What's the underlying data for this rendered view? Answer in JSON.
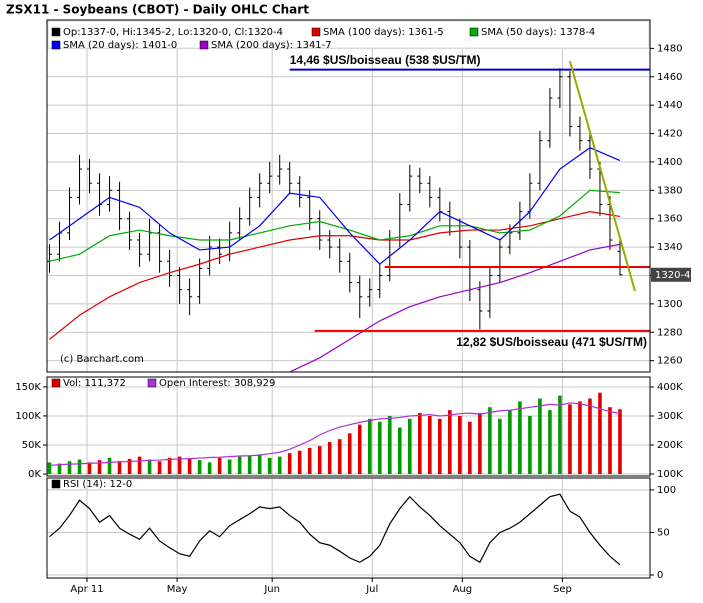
{
  "chart_data": [
    {
      "type": "ohlc",
      "title": "ZSX11 - Soybeans (CBOT) - Daily OHLC Chart",
      "credit": "(c) Barchart.com",
      "last_label": "1320-4",
      "x": [
        0,
        2,
        4,
        6,
        8,
        10,
        12,
        14,
        16,
        18,
        20,
        22,
        24,
        26,
        28,
        30,
        32,
        34,
        36,
        38,
        40,
        42,
        44,
        46,
        48,
        50,
        52,
        54,
        56,
        58,
        60,
        62,
        64,
        66,
        68,
        70,
        72,
        74,
        76,
        78,
        80,
        82,
        84,
        86,
        88,
        90,
        92,
        94,
        96,
        98,
        100,
        102,
        104,
        106,
        108,
        110,
        112,
        114
      ],
      "xlim": [
        -0.5,
        120
      ],
      "ylim": [
        1252,
        1500
      ],
      "yticks": [
        1260,
        1280,
        1300,
        1320,
        1340,
        1360,
        1380,
        1400,
        1420,
        1440,
        1460,
        1480
      ],
      "grid": true,
      "series": [
        {
          "name": "Op:1337-0, Hi:1345-2, Lo:1320-0, Cl:1320-4",
          "color": "#000000",
          "open": [
            1330,
            1335,
            1350,
            1375,
            1395,
            1385,
            1370,
            1380,
            1360,
            1345,
            1335,
            1350,
            1330,
            1320,
            1310,
            1305,
            1325,
            1340,
            1335,
            1350,
            1360,
            1375,
            1385,
            1390,
            1395,
            1385,
            1375,
            1360,
            1345,
            1340,
            1330,
            1315,
            1305,
            1310,
            1320,
            1345,
            1370,
            1390,
            1385,
            1375,
            1365,
            1355,
            1340,
            1310,
            1295,
            1320,
            1340,
            1350,
            1365,
            1385,
            1415,
            1445,
            1460,
            1425,
            1415,
            1395,
            1370,
            1337
          ],
          "high": [
            1342,
            1358,
            1382,
            1405,
            1402,
            1392,
            1390,
            1386,
            1365,
            1350,
            1360,
            1356,
            1338,
            1326,
            1318,
            1332,
            1348,
            1346,
            1358,
            1368,
            1382,
            1392,
            1400,
            1405,
            1400,
            1390,
            1380,
            1366,
            1352,
            1346,
            1336,
            1320,
            1318,
            1328,
            1352,
            1378,
            1398,
            1396,
            1390,
            1382,
            1372,
            1360,
            1345,
            1316,
            1326,
            1346,
            1356,
            1372,
            1392,
            1422,
            1452,
            1466,
            1464,
            1432,
            1420,
            1400,
            1376,
            1345.25
          ],
          "low": [
            1322,
            1330,
            1345,
            1370,
            1378,
            1362,
            1365,
            1352,
            1338,
            1326,
            1330,
            1322,
            1312,
            1300,
            1292,
            1300,
            1320,
            1328,
            1330,
            1345,
            1355,
            1368,
            1378,
            1384,
            1378,
            1368,
            1352,
            1338,
            1332,
            1322,
            1308,
            1290,
            1298,
            1304,
            1316,
            1340,
            1365,
            1378,
            1368,
            1358,
            1348,
            1332,
            1302,
            1282,
            1290,
            1315,
            1335,
            1345,
            1360,
            1380,
            1410,
            1438,
            1418,
            1408,
            1388,
            1362,
            1338,
            1320
          ],
          "close": [
            1335,
            1350,
            1375,
            1395,
            1385,
            1370,
            1380,
            1360,
            1345,
            1335,
            1350,
            1330,
            1320,
            1310,
            1305,
            1325,
            1340,
            1335,
            1350,
            1360,
            1375,
            1385,
            1390,
            1395,
            1385,
            1375,
            1360,
            1345,
            1340,
            1330,
            1315,
            1305,
            1310,
            1320,
            1345,
            1370,
            1390,
            1385,
            1375,
            1365,
            1355,
            1340,
            1310,
            1295,
            1320,
            1340,
            1350,
            1365,
            1385,
            1415,
            1445,
            1460,
            1425,
            1415,
            1395,
            1370,
            1345,
            1320.5
          ]
        },
        {
          "name": "SMA (100 days): 1361-5",
          "color": "#dd0000",
          "x": [
            0,
            6,
            12,
            18,
            24,
            30,
            36,
            42,
            48,
            54,
            60,
            66,
            72,
            78,
            84,
            90,
            96,
            102,
            108,
            114
          ],
          "values": [
            1275,
            1292,
            1305,
            1315,
            1322,
            1328,
            1335,
            1340,
            1345,
            1348,
            1348,
            1345,
            1345,
            1350,
            1352,
            1352,
            1355,
            1360,
            1365,
            1361.6
          ]
        },
        {
          "name": "SMA (50 days): 1378-4",
          "color": "#00aa00",
          "x": [
            0,
            6,
            12,
            18,
            24,
            30,
            36,
            42,
            48,
            54,
            60,
            66,
            72,
            78,
            84,
            90,
            96,
            102,
            108,
            114
          ],
          "values": [
            1330,
            1335,
            1348,
            1352,
            1348,
            1345,
            1345,
            1350,
            1355,
            1358,
            1352,
            1345,
            1348,
            1355,
            1355,
            1350,
            1352,
            1362,
            1380,
            1378.4
          ]
        },
        {
          "name": "SMA (20 days): 1401-0",
          "color": "#0000ee",
          "x": [
            0,
            6,
            12,
            18,
            24,
            30,
            36,
            42,
            48,
            54,
            60,
            66,
            72,
            78,
            84,
            90,
            96,
            102,
            108,
            114
          ],
          "values": [
            1345,
            1360,
            1375,
            1368,
            1350,
            1338,
            1340,
            1355,
            1378,
            1375,
            1350,
            1328,
            1345,
            1365,
            1355,
            1345,
            1365,
            1395,
            1410,
            1401
          ]
        },
        {
          "name": "SMA (200 days): 1341-7",
          "color": "#9900cc",
          "x": [
            48,
            54,
            60,
            66,
            72,
            78,
            84,
            90,
            96,
            102,
            108,
            114
          ],
          "values": [
            1252,
            1262,
            1275,
            1288,
            1298,
            1305,
            1310,
            1315,
            1322,
            1330,
            1338,
            1341.9
          ]
        }
      ],
      "annotations": [
        {
          "text": "14,46 $US/boisseau (538 $US/TM)",
          "x": 48,
          "y": 1465,
          "color": "#0000cc"
        },
        {
          "text": "12,82 $US/boisseau (471 $US/TM)",
          "x": 53,
          "y": 1281,
          "color": "#ee0000"
        },
        {
          "x": 67,
          "y": 1326,
          "color": "#ee0000"
        }
      ],
      "trendline": {
        "x": [
          104,
          117
        ],
        "y": [
          1471,
          1309
        ],
        "color": "#99aa00"
      }
    },
    {
      "type": "bar",
      "x": [
        0,
        2,
        4,
        6,
        8,
        10,
        12,
        14,
        16,
        18,
        20,
        22,
        24,
        26,
        28,
        30,
        32,
        34,
        36,
        38,
        40,
        42,
        44,
        46,
        48,
        50,
        52,
        54,
        56,
        58,
        60,
        62,
        64,
        66,
        68,
        70,
        72,
        74,
        76,
        78,
        80,
        82,
        84,
        86,
        88,
        90,
        92,
        94,
        96,
        98,
        100,
        102,
        104,
        106,
        108,
        110,
        112,
        114
      ],
      "xlim": [
        -0.5,
        120
      ],
      "ylim": [
        -3400,
        167000
      ],
      "y2lim": [
        93100,
        434500
      ],
      "up_color": "#009900",
      "grid": true,
      "yticks": [
        {
          "value": 0,
          "label": "0K"
        },
        {
          "value": 50000,
          "label": "50K"
        },
        {
          "value": 100000,
          "label": "100K"
        },
        {
          "value": 150000,
          "label": "150K"
        }
      ],
      "y2ticks": [
        {
          "value": 100000,
          "label": "100K"
        },
        {
          "value": 200000,
          "label": "200K"
        },
        {
          "value": 300000,
          "label": "300K"
        },
        {
          "value": 400000,
          "label": "400K"
        }
      ],
      "series": [
        {
          "name": "Vol: 111,372",
          "color": "#dd0000",
          "values": [
            20000,
            18000,
            22000,
            25000,
            20000,
            24000,
            28000,
            22000,
            26000,
            30000,
            25000,
            22000,
            28000,
            30000,
            26000,
            24000,
            20000,
            28000,
            25000,
            30000,
            32000,
            34000,
            28000,
            30000,
            36000,
            40000,
            45000,
            48000,
            55000,
            60000,
            70000,
            85000,
            95000,
            90000,
            100000,
            80000,
            95000,
            105000,
            100000,
            95000,
            110000,
            100000,
            90000,
            105000,
            115000,
            95000,
            110000,
            125000,
            100000,
            130000,
            110000,
            135000,
            120000,
            125000,
            130000,
            140000,
            115000,
            111372
          ]
        },
        {
          "name": "Open Interest: 308,929",
          "color": "#aa33dd",
          "axis": "y2",
          "values": [
            130000,
            132000,
            134000,
            135000,
            137000,
            138000,
            140000,
            142000,
            143000,
            145000,
            147000,
            148000,
            150000,
            152000,
            153000,
            155000,
            157000,
            158000,
            160000,
            162000,
            163000,
            165000,
            170000,
            175000,
            185000,
            200000,
            215000,
            235000,
            250000,
            262000,
            270000,
            278000,
            285000,
            290000,
            292000,
            295000,
            300000,
            302000,
            305000,
            300000,
            303000,
            308000,
            310000,
            306000,
            312000,
            318000,
            320000,
            325000,
            330000,
            335000,
            340000,
            338000,
            345000,
            342000,
            335000,
            325000,
            315000,
            308929
          ]
        }
      ]
    },
    {
      "type": "line",
      "x": [
        0,
        2,
        4,
        6,
        8,
        10,
        12,
        14,
        16,
        18,
        20,
        22,
        24,
        26,
        28,
        30,
        32,
        34,
        36,
        38,
        40,
        42,
        44,
        46,
        48,
        50,
        52,
        54,
        56,
        58,
        60,
        62,
        64,
        66,
        68,
        70,
        72,
        74,
        76,
        78,
        80,
        82,
        84,
        86,
        88,
        90,
        92,
        94,
        96,
        98,
        100,
        102,
        104,
        106,
        108,
        110,
        112,
        114
      ],
      "xlim": [
        -0.5,
        120
      ],
      "ylim": [
        -3.5,
        114
      ],
      "yticks": [
        0,
        50,
        100
      ],
      "grid": true,
      "xticks": [
        {
          "value": 7.5,
          "label": "Apr 11"
        },
        {
          "value": 25.5,
          "label": "May"
        },
        {
          "value": 44.5,
          "label": "Jun"
        },
        {
          "value": 64.5,
          "label": "Jul"
        },
        {
          "value": 82.5,
          "label": "Aug"
        },
        {
          "value": 102.5,
          "label": "Sep"
        }
      ],
      "series": [
        {
          "name": "RSI (14): 12-0",
          "color": "#000000",
          "values": [
            45,
            55,
            70,
            88,
            78,
            62,
            70,
            55,
            48,
            42,
            55,
            40,
            32,
            25,
            22,
            40,
            52,
            45,
            58,
            65,
            72,
            80,
            78,
            80,
            70,
            62,
            48,
            38,
            35,
            28,
            20,
            15,
            22,
            35,
            60,
            78,
            92,
            80,
            70,
            58,
            48,
            38,
            22,
            15,
            38,
            50,
            55,
            62,
            72,
            82,
            92,
            95,
            75,
            68,
            50,
            35,
            22,
            12
          ]
        }
      ]
    }
  ]
}
